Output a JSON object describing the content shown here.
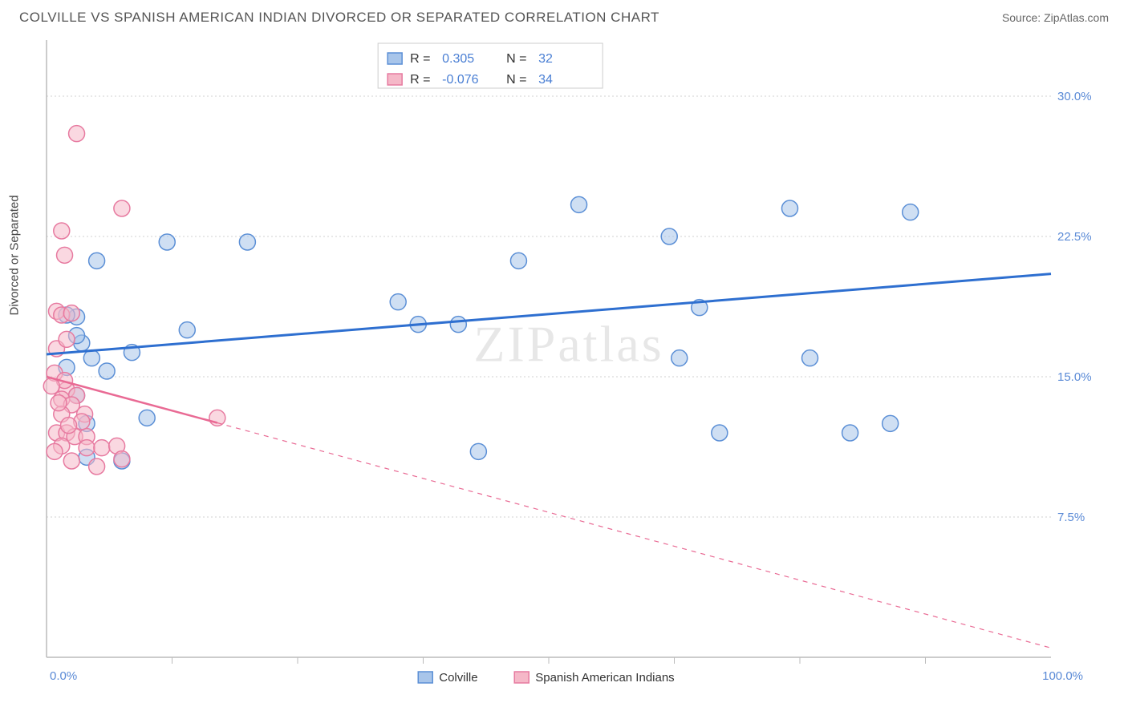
{
  "title": "COLVILLE VS SPANISH AMERICAN INDIAN DIVORCED OR SEPARATED CORRELATION CHART",
  "source": "Source: ZipAtlas.com",
  "y_axis_label": "Divorced or Separated",
  "watermark": "ZIPatlas",
  "chart": {
    "type": "scatter",
    "xlim": [
      0,
      100
    ],
    "ylim": [
      0,
      33
    ],
    "x_ticks_major": [
      0,
      100
    ],
    "x_ticks_minor": [
      12.5,
      25,
      37.5,
      50,
      62.5,
      75,
      87.5
    ],
    "y_ticks": [
      7.5,
      15.0,
      22.5,
      30.0
    ],
    "y_tick_labels": [
      "7.5%",
      "15.0%",
      "22.5%",
      "30.0%"
    ],
    "x_tick_labels": [
      "0.0%",
      "100.0%"
    ],
    "background_color": "#ffffff",
    "grid_color": "#d0d0d0",
    "axis_color": "#bbbbbb",
    "marker_radius": 10,
    "marker_opacity": 0.55,
    "series": [
      {
        "name": "Colville",
        "color_fill": "#a8c5ea",
        "color_stroke": "#5b8fd6",
        "R": "0.305",
        "N": "32",
        "points": [
          [
            5,
            21.2
          ],
          [
            12,
            22.2
          ],
          [
            20,
            22.2
          ],
          [
            14,
            17.5
          ],
          [
            3.5,
            16.8
          ],
          [
            4.5,
            16.0
          ],
          [
            8.5,
            16.3
          ],
          [
            6,
            15.3
          ],
          [
            4,
            12.5
          ],
          [
            10,
            12.8
          ],
          [
            7.5,
            10.5
          ],
          [
            4,
            10.7
          ],
          [
            3,
            14.0
          ],
          [
            2,
            15.5
          ],
          [
            3,
            18.2
          ],
          [
            35,
            19.0
          ],
          [
            37,
            17.8
          ],
          [
            41,
            17.8
          ],
          [
            47,
            21.2
          ],
          [
            53,
            24.2
          ],
          [
            62,
            22.5
          ],
          [
            63,
            16.0
          ],
          [
            65,
            18.7
          ],
          [
            43,
            11.0
          ],
          [
            67,
            12.0
          ],
          [
            80,
            12.0
          ],
          [
            74,
            24.0
          ],
          [
            76,
            16.0
          ],
          [
            86,
            23.8
          ],
          [
            84,
            12.5
          ],
          [
            2,
            18.3
          ],
          [
            3,
            17.2
          ]
        ],
        "trend": {
          "x1": 0,
          "y1": 16.2,
          "x2": 100,
          "y2": 20.5,
          "solid_until": 100,
          "color": "#2e6fd0",
          "width": 3
        }
      },
      {
        "name": "Spanish American Indians",
        "color_fill": "#f5b8c8",
        "color_stroke": "#e77aa0",
        "R": "-0.076",
        "N": "34",
        "points": [
          [
            3,
            28.0
          ],
          [
            7.5,
            24.0
          ],
          [
            1.5,
            22.8
          ],
          [
            1.8,
            21.5
          ],
          [
            1,
            18.5
          ],
          [
            1.5,
            18.3
          ],
          [
            2.5,
            18.4
          ],
          [
            1,
            16.5
          ],
          [
            0.8,
            15.2
          ],
          [
            2,
            14.3
          ],
          [
            3,
            14.0
          ],
          [
            1.5,
            13.8
          ],
          [
            2.5,
            13.5
          ],
          [
            1.5,
            13.0
          ],
          [
            3.8,
            13.0
          ],
          [
            1,
            12.0
          ],
          [
            2,
            12.0
          ],
          [
            2.8,
            11.8
          ],
          [
            4,
            11.8
          ],
          [
            1.5,
            11.3
          ],
          [
            4,
            11.2
          ],
          [
            5.5,
            11.2
          ],
          [
            7,
            11.3
          ],
          [
            2.5,
            10.5
          ],
          [
            5,
            10.2
          ],
          [
            7.5,
            10.6
          ],
          [
            0.8,
            11.0
          ],
          [
            17,
            12.8
          ],
          [
            2,
            17.0
          ],
          [
            1.8,
            14.8
          ],
          [
            3.5,
            12.6
          ],
          [
            2.2,
            12.4
          ],
          [
            1.2,
            13.6
          ],
          [
            0.5,
            14.5
          ]
        ],
        "trend": {
          "x1": 0,
          "y1": 15.0,
          "x2": 100,
          "y2": 0.5,
          "solid_until": 17,
          "color": "#e96a94",
          "width": 2.5
        }
      }
    ],
    "stats_box": {
      "rows": [
        {
          "swatch_fill": "#a8c5ea",
          "swatch_stroke": "#5b8fd6",
          "R_label": "R =",
          "R_val": "0.305",
          "N_label": "N =",
          "N_val": "32"
        },
        {
          "swatch_fill": "#f5b8c8",
          "swatch_stroke": "#e77aa0",
          "R_label": "R =",
          "R_val": "-0.076",
          "N_label": "N =",
          "N_val": "34"
        }
      ]
    },
    "bottom_legend": [
      {
        "swatch_fill": "#a8c5ea",
        "swatch_stroke": "#5b8fd6",
        "label": "Colville"
      },
      {
        "swatch_fill": "#f5b8c8",
        "swatch_stroke": "#e77aa0",
        "label": "Spanish American Indians"
      }
    ]
  }
}
